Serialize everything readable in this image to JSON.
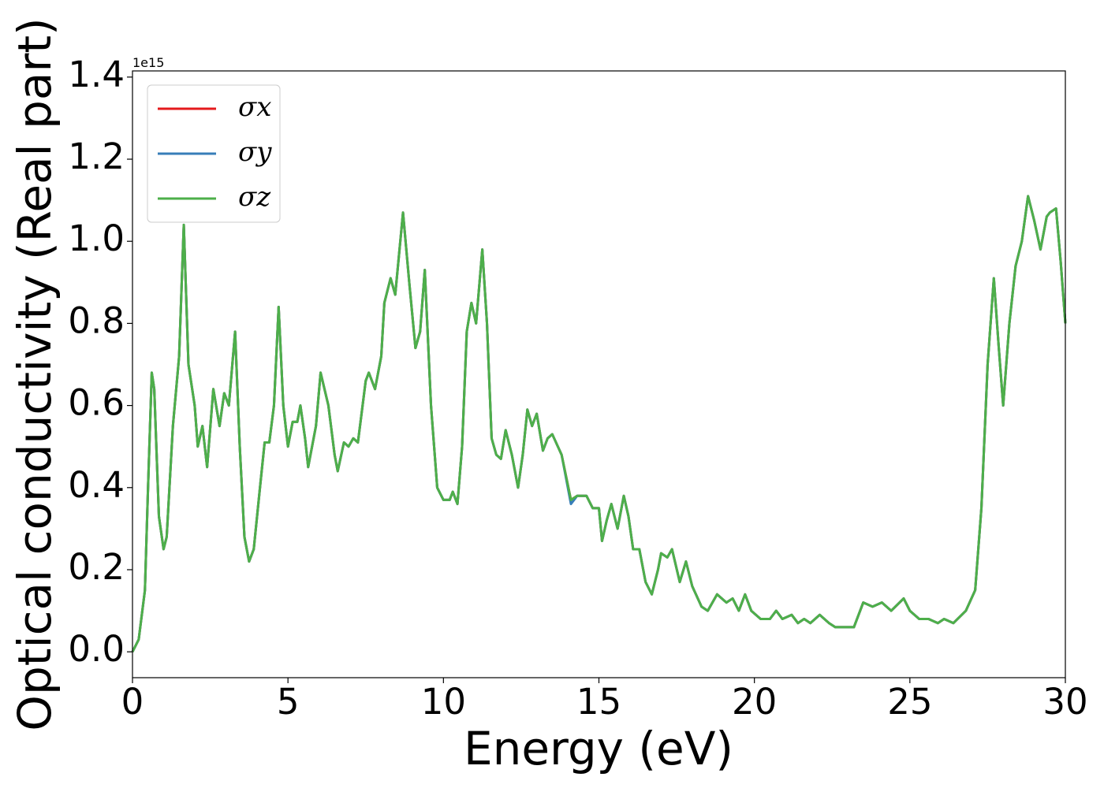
{
  "chart_data": {
    "type": "line",
    "xlabel": "Energy (eV)",
    "ylabel": "Optical conductivity (Real part)",
    "y_offset_label": "1e15",
    "xlim": [
      0,
      30
    ],
    "xticks": [
      0,
      5,
      10,
      15,
      20,
      25,
      30
    ],
    "ylim": [
      -0.063,
      1.415
    ],
    "yticks": [
      {
        "value": 0,
        "label": "0.0"
      },
      0.2,
      0.4,
      0.6,
      0.8,
      {
        "value": 1,
        "label": "1.0"
      },
      1.2,
      1.4
    ],
    "grid": false,
    "legend": "upper left",
    "x": [
      0,
      0.2,
      0.4,
      0.5,
      0.62,
      0.7,
      0.85,
      1.0,
      1.1,
      1.3,
      1.5,
      1.65,
      1.8,
      2.0,
      2.1,
      2.25,
      2.4,
      2.6,
      2.8,
      2.95,
      3.1,
      3.3,
      3.45,
      3.6,
      3.75,
      3.9,
      4.1,
      4.25,
      4.4,
      4.55,
      4.7,
      4.85,
      5.0,
      5.15,
      5.3,
      5.4,
      5.55,
      5.65,
      5.9,
      6.05,
      6.3,
      6.5,
      6.6,
      6.8,
      6.95,
      7.1,
      7.25,
      7.5,
      7.6,
      7.8,
      8.0,
      8.1,
      8.3,
      8.45,
      8.7,
      8.9,
      9.1,
      9.25,
      9.4,
      9.6,
      9.8,
      10.0,
      10.2,
      10.3,
      10.45,
      10.6,
      10.75,
      10.9,
      11.05,
      11.25,
      11.4,
      11.55,
      11.7,
      11.85,
      12.0,
      12.2,
      12.4,
      12.55,
      12.7,
      12.85,
      13.0,
      13.2,
      13.35,
      13.5,
      13.8,
      14.1,
      14.3,
      14.6,
      14.8,
      15.0,
      15.1,
      15.25,
      15.4,
      15.6,
      15.8,
      15.95,
      16.1,
      16.3,
      16.5,
      16.7,
      16.9,
      17.0,
      17.2,
      17.35,
      17.6,
      17.8,
      18.0,
      18.3,
      18.5,
      18.8,
      19.1,
      19.3,
      19.5,
      19.7,
      19.9,
      20.2,
      20.5,
      20.7,
      20.9,
      21.2,
      21.4,
      21.6,
      21.8,
      22.1,
      22.4,
      22.6,
      22.9,
      23.2,
      23.5,
      23.8,
      24.1,
      24.4,
      24.8,
      25.0,
      25.3,
      25.6,
      25.9,
      26.1,
      26.4,
      26.8,
      27.1,
      27.3,
      27.5,
      27.7,
      27.85,
      28.0,
      28.2,
      28.4,
      28.6,
      28.8,
      29.0,
      29.2,
      29.4,
      29.5,
      29.7,
      29.85,
      30.0
    ],
    "series": [
      {
        "name": "σx",
        "color": "#e41a1c",
        "values": [
          0.0,
          0.03,
          0.15,
          0.4,
          0.68,
          0.64,
          0.33,
          0.25,
          0.28,
          0.55,
          0.72,
          1.04,
          0.7,
          0.6,
          0.5,
          0.55,
          0.45,
          0.64,
          0.55,
          0.63,
          0.6,
          0.78,
          0.5,
          0.28,
          0.22,
          0.25,
          0.4,
          0.51,
          0.51,
          0.6,
          0.84,
          0.6,
          0.5,
          0.56,
          0.56,
          0.6,
          0.52,
          0.45,
          0.55,
          0.68,
          0.6,
          0.48,
          0.44,
          0.51,
          0.5,
          0.52,
          0.51,
          0.66,
          0.68,
          0.64,
          0.72,
          0.85,
          0.91,
          0.87,
          1.07,
          0.9,
          0.74,
          0.78,
          0.93,
          0.6,
          0.4,
          0.37,
          0.37,
          0.39,
          0.36,
          0.5,
          0.78,
          0.85,
          0.8,
          0.98,
          0.8,
          0.52,
          0.48,
          0.47,
          0.54,
          0.48,
          0.4,
          0.48,
          0.59,
          0.55,
          0.58,
          0.49,
          0.52,
          0.53,
          0.48,
          0.37,
          0.38,
          0.38,
          0.35,
          0.35,
          0.27,
          0.32,
          0.36,
          0.3,
          0.38,
          0.33,
          0.25,
          0.25,
          0.17,
          0.14,
          0.2,
          0.24,
          0.23,
          0.25,
          0.17,
          0.22,
          0.16,
          0.11,
          0.1,
          0.14,
          0.12,
          0.13,
          0.1,
          0.14,
          0.1,
          0.08,
          0.08,
          0.1,
          0.08,
          0.09,
          0.07,
          0.08,
          0.07,
          0.09,
          0.07,
          0.06,
          0.06,
          0.06,
          0.12,
          0.11,
          0.12,
          0.1,
          0.13,
          0.1,
          0.08,
          0.08,
          0.07,
          0.08,
          0.07,
          0.1,
          0.15,
          0.35,
          0.7,
          0.91,
          0.75,
          0.6,
          0.8,
          0.94,
          1.0,
          1.11,
          1.05,
          0.98,
          1.06,
          1.07,
          1.08,
          0.95,
          0.8
        ]
      },
      {
        "name": "σy",
        "color": "#377eb8",
        "values": [
          0.0,
          0.03,
          0.15,
          0.4,
          0.68,
          0.64,
          0.33,
          0.25,
          0.28,
          0.55,
          0.72,
          1.04,
          0.7,
          0.6,
          0.5,
          0.55,
          0.45,
          0.64,
          0.55,
          0.63,
          0.6,
          0.78,
          0.5,
          0.28,
          0.22,
          0.25,
          0.4,
          0.51,
          0.51,
          0.6,
          0.84,
          0.6,
          0.5,
          0.56,
          0.56,
          0.6,
          0.52,
          0.45,
          0.55,
          0.68,
          0.6,
          0.48,
          0.44,
          0.51,
          0.5,
          0.52,
          0.51,
          0.66,
          0.68,
          0.64,
          0.72,
          0.85,
          0.91,
          0.87,
          1.07,
          0.9,
          0.74,
          0.78,
          0.93,
          0.6,
          0.4,
          0.37,
          0.37,
          0.39,
          0.36,
          0.5,
          0.78,
          0.85,
          0.8,
          0.98,
          0.8,
          0.52,
          0.48,
          0.47,
          0.54,
          0.48,
          0.4,
          0.48,
          0.59,
          0.55,
          0.58,
          0.49,
          0.52,
          0.53,
          0.48,
          0.36,
          0.38,
          0.38,
          0.35,
          0.35,
          0.27,
          0.32,
          0.36,
          0.3,
          0.38,
          0.33,
          0.25,
          0.25,
          0.17,
          0.14,
          0.2,
          0.24,
          0.23,
          0.25,
          0.17,
          0.22,
          0.16,
          0.11,
          0.1,
          0.14,
          0.12,
          0.13,
          0.1,
          0.14,
          0.1,
          0.08,
          0.08,
          0.1,
          0.08,
          0.09,
          0.07,
          0.08,
          0.07,
          0.09,
          0.07,
          0.06,
          0.06,
          0.06,
          0.12,
          0.11,
          0.12,
          0.1,
          0.13,
          0.1,
          0.08,
          0.08,
          0.07,
          0.08,
          0.07,
          0.1,
          0.15,
          0.35,
          0.7,
          0.91,
          0.75,
          0.6,
          0.8,
          0.94,
          1.0,
          1.11,
          1.05,
          0.98,
          1.06,
          1.07,
          1.08,
          0.95,
          0.8
        ]
      },
      {
        "name": "σz",
        "color": "#4daf4a",
        "values": [
          0.0,
          0.03,
          0.15,
          0.4,
          0.68,
          0.64,
          0.33,
          0.25,
          0.28,
          0.55,
          0.72,
          1.04,
          0.7,
          0.6,
          0.5,
          0.55,
          0.45,
          0.64,
          0.55,
          0.63,
          0.6,
          0.78,
          0.5,
          0.28,
          0.22,
          0.25,
          0.4,
          0.51,
          0.51,
          0.6,
          0.84,
          0.6,
          0.5,
          0.56,
          0.56,
          0.6,
          0.52,
          0.45,
          0.55,
          0.68,
          0.6,
          0.48,
          0.44,
          0.51,
          0.5,
          0.52,
          0.51,
          0.66,
          0.68,
          0.64,
          0.72,
          0.85,
          0.91,
          0.87,
          1.07,
          0.9,
          0.74,
          0.78,
          0.93,
          0.6,
          0.4,
          0.37,
          0.37,
          0.39,
          0.36,
          0.5,
          0.78,
          0.85,
          0.8,
          0.98,
          0.8,
          0.52,
          0.48,
          0.47,
          0.54,
          0.48,
          0.4,
          0.48,
          0.59,
          0.55,
          0.58,
          0.49,
          0.52,
          0.53,
          0.48,
          0.37,
          0.38,
          0.38,
          0.35,
          0.35,
          0.27,
          0.32,
          0.36,
          0.3,
          0.38,
          0.33,
          0.25,
          0.25,
          0.17,
          0.14,
          0.2,
          0.24,
          0.23,
          0.25,
          0.17,
          0.22,
          0.16,
          0.11,
          0.1,
          0.14,
          0.12,
          0.13,
          0.1,
          0.14,
          0.1,
          0.08,
          0.08,
          0.1,
          0.08,
          0.09,
          0.07,
          0.08,
          0.07,
          0.09,
          0.07,
          0.06,
          0.06,
          0.06,
          0.12,
          0.11,
          0.12,
          0.1,
          0.13,
          0.1,
          0.08,
          0.08,
          0.07,
          0.08,
          0.07,
          0.1,
          0.15,
          0.35,
          0.7,
          0.91,
          0.75,
          0.6,
          0.8,
          0.94,
          1.0,
          1.11,
          1.05,
          0.98,
          1.06,
          1.07,
          1.08,
          0.95,
          0.8
        ]
      }
    ]
  }
}
